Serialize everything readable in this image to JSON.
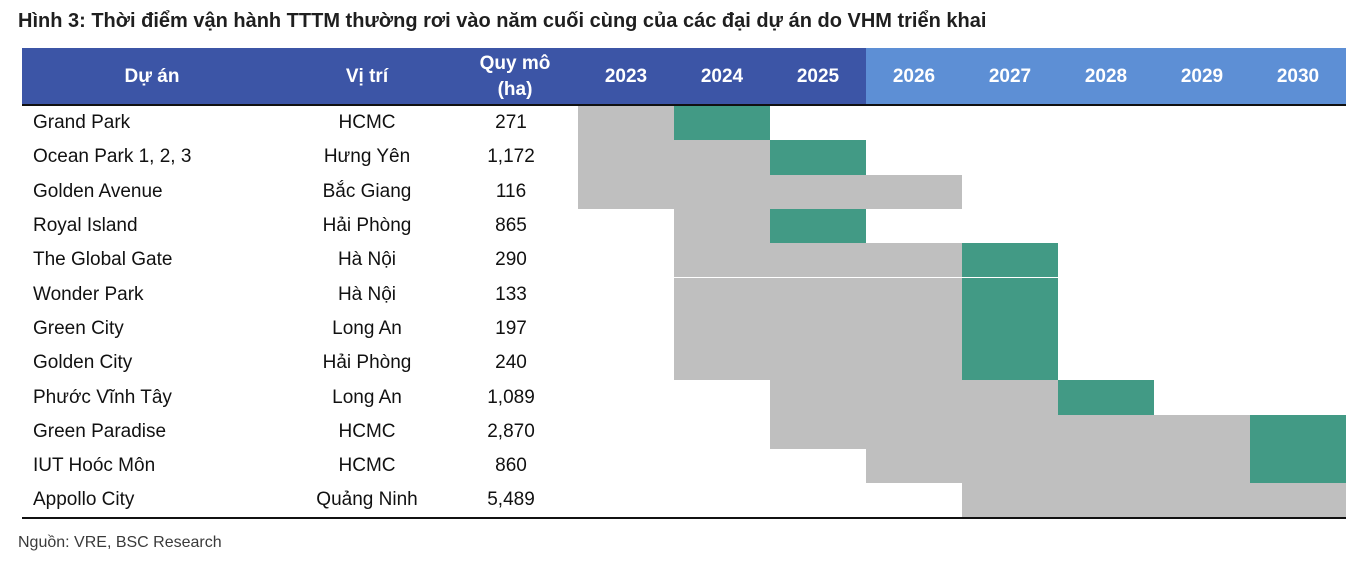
{
  "title": "Hình 3: Thời điểm vận hành TTTM thường rơi vào năm cuối cùng của các đại dự án do VHM triển khai",
  "table": {
    "headers": {
      "project": "Dự án",
      "location": "Vị trí",
      "size_line1": "Quy mô",
      "size_line2": "(ha)",
      "years": [
        "2023",
        "2024",
        "2025",
        "2026",
        "2027",
        "2028",
        "2029",
        "2030"
      ]
    },
    "colors": {
      "header_dark": "#3c55a6",
      "header_light": "#5d8fd5",
      "construction": "#bfbfbf",
      "operation": "#429a85"
    },
    "rows": [
      {
        "name": "Grand Park",
        "location": "HCMC",
        "size": "271",
        "years": [
          "gray",
          "green",
          "",
          "",
          "",
          "",
          "",
          ""
        ]
      },
      {
        "name": "Ocean Park 1, 2, 3",
        "location": "Hưng Yên",
        "size": "1,172",
        "years": [
          "gray",
          "gray",
          "green",
          "",
          "",
          "",
          "",
          ""
        ]
      },
      {
        "name": "Golden Avenue",
        "location": "Bắc Giang",
        "size": "116",
        "years": [
          "gray",
          "gray",
          "gray",
          "gray",
          "",
          "",
          "",
          ""
        ]
      },
      {
        "name": "Royal Island",
        "location": "Hải Phòng",
        "size": "865",
        "years": [
          "",
          "gray",
          "green",
          "",
          "",
          "",
          "",
          ""
        ]
      },
      {
        "name": "The Global Gate",
        "location": "Hà Nội",
        "size": "290",
        "years": [
          "",
          "gray",
          "gray",
          "gray",
          "green",
          "",
          "",
          ""
        ]
      },
      {
        "name": "Wonder Park",
        "location": "Hà Nội",
        "size": "133",
        "years": [
          "",
          "gray",
          "gray",
          "gray",
          "green",
          "",
          "",
          ""
        ]
      },
      {
        "name": "Green City",
        "location": "Long An",
        "size": "197",
        "years": [
          "",
          "gray",
          "gray",
          "gray",
          "green",
          "",
          "",
          ""
        ]
      },
      {
        "name": "Golden City",
        "location": "Hải Phòng",
        "size": "240",
        "years": [
          "",
          "gray",
          "gray",
          "gray",
          "green",
          "",
          "",
          ""
        ]
      },
      {
        "name": "Phước Vĩnh Tây",
        "location": "Long An",
        "size": "1,089",
        "years": [
          "",
          "",
          "gray",
          "gray",
          "gray",
          "green",
          "",
          ""
        ]
      },
      {
        "name": "Green Paradise",
        "location": "HCMC",
        "size": "2,870",
        "years": [
          "",
          "",
          "gray",
          "gray",
          "gray",
          "gray",
          "gray",
          "green"
        ]
      },
      {
        "name": "IUT Hoóc Môn",
        "location": "HCMC",
        "size": "860",
        "years": [
          "",
          "",
          "",
          "gray",
          "gray",
          "gray",
          "gray",
          "green"
        ]
      },
      {
        "name": "Appollo City",
        "location": "Quảng Ninh",
        "size": "5,489",
        "years": [
          "",
          "",
          "",
          "",
          "gray",
          "gray",
          "gray",
          "gray"
        ]
      }
    ]
  },
  "source": "Nguồn: VRE, BSC Research"
}
